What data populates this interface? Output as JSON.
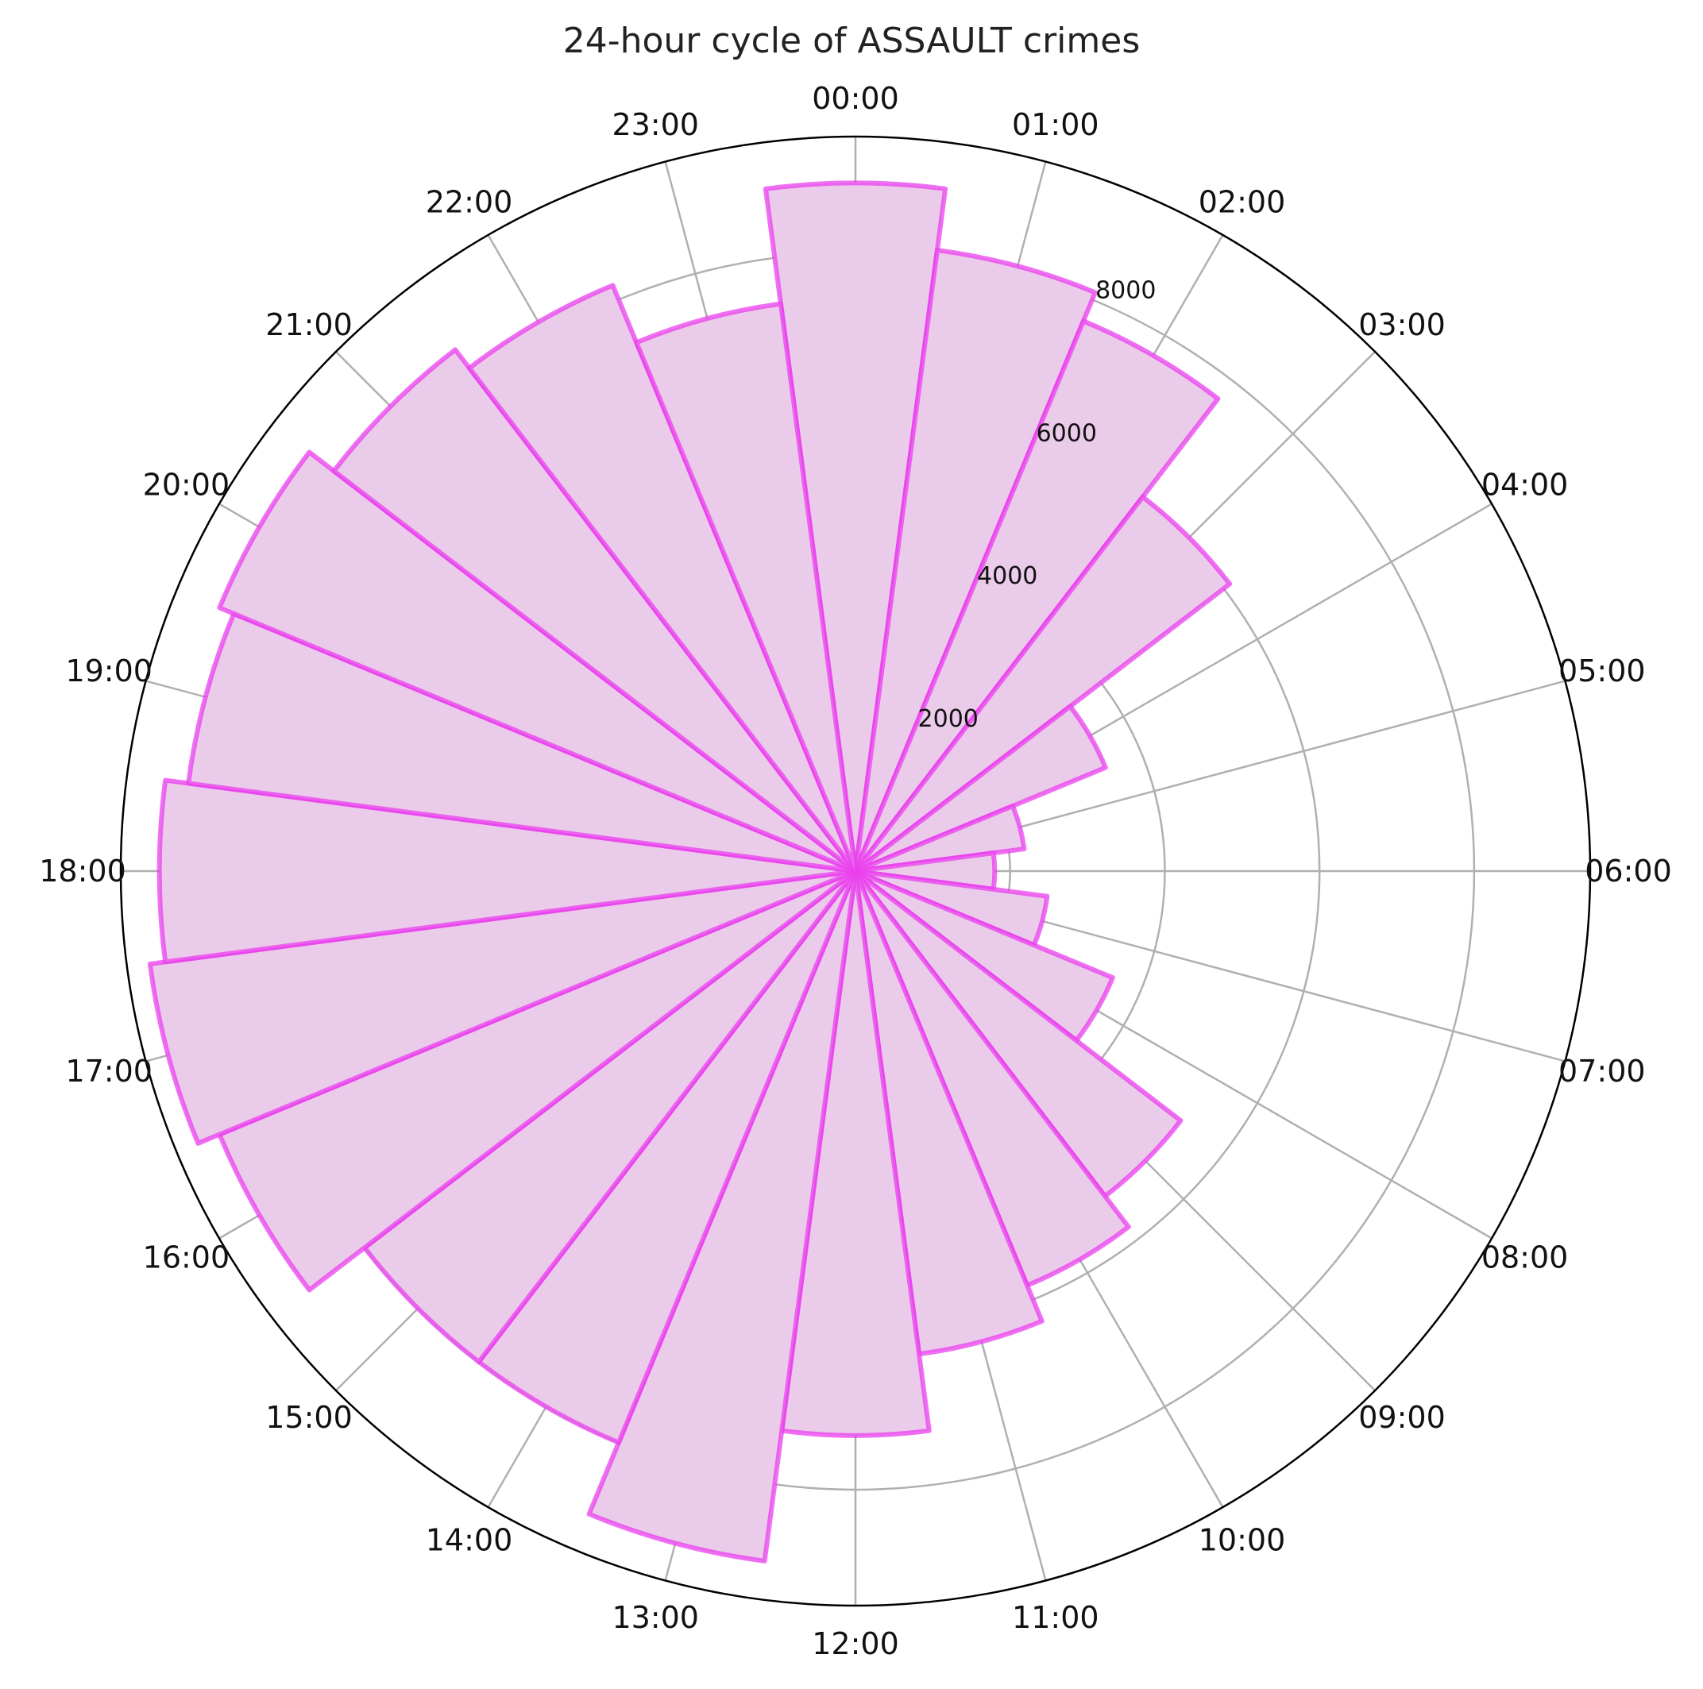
{
  "chart_data": {
    "type": "bar",
    "subtype": "polar",
    "title": "24-hour cycle of ASSAULT crimes",
    "categories": [
      "00:00",
      "01:00",
      "02:00",
      "03:00",
      "04:00",
      "05:00",
      "06:00",
      "07:00",
      "08:00",
      "09:00",
      "10:00",
      "11:00",
      "12:00",
      "13:00",
      "14:00",
      "15:00",
      "16:00",
      "17:00",
      "18:00",
      "19:00",
      "20:00",
      "21:00",
      "22:00",
      "23:00"
    ],
    "values": [
      8900,
      8100,
      7700,
      6100,
      3500,
      2200,
      1800,
      2500,
      3600,
      5300,
      5800,
      6300,
      7300,
      9000,
      8000,
      8000,
      8900,
      9200,
      9000,
      8700,
      8900,
      8500,
      8200,
      7400
    ],
    "radial_ticks": [
      2000,
      4000,
      6000,
      8000
    ],
    "rlim": [
      0,
      9500
    ],
    "direction": "clockwise",
    "zero_location": "top",
    "grid": true,
    "colors": {
      "bar_fill": "#ebcbea",
      "bar_edge": "#ea3fee",
      "grid": "#b0b0b0",
      "spine": "#000000"
    }
  }
}
